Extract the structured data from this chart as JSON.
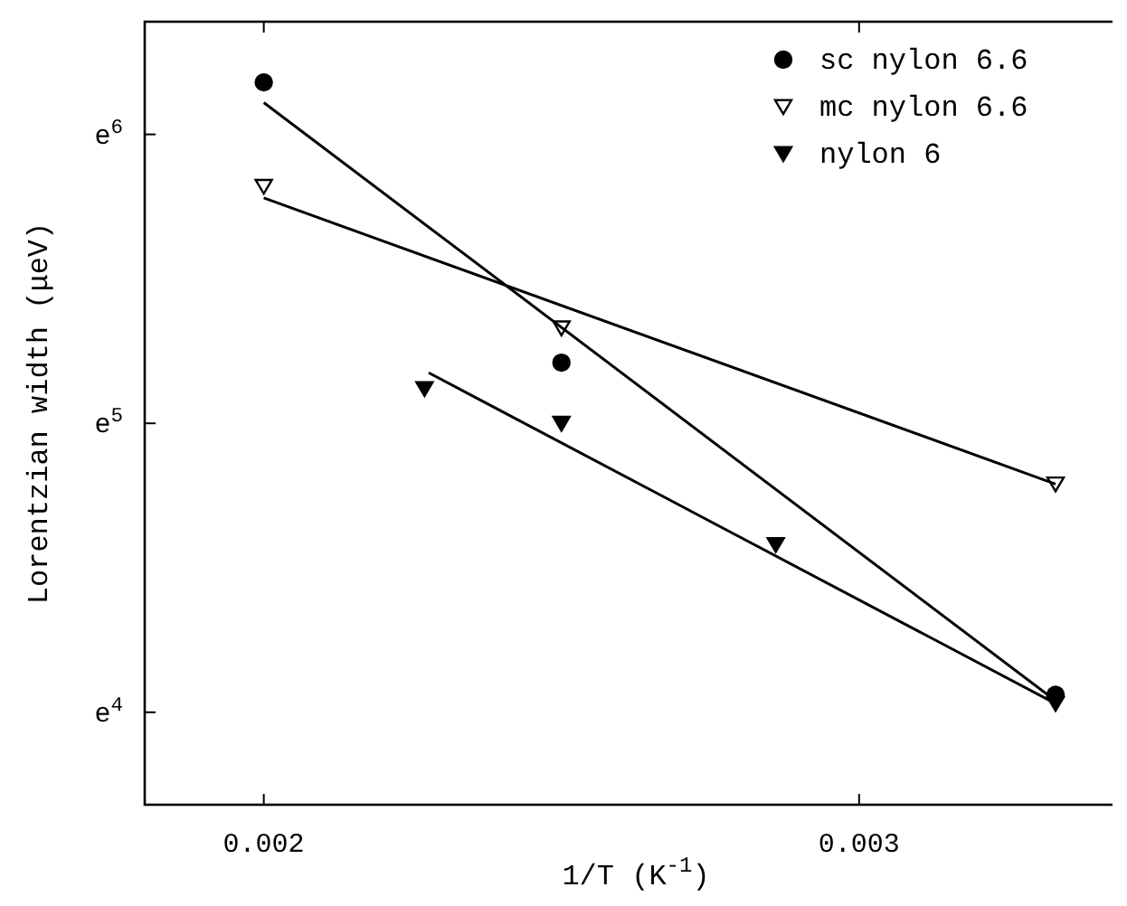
{
  "chart_data": {
    "type": "scatter",
    "xlabel": "1/T (K$^{-1}$)",
    "ylabel": "Lorentzian width (μeV)",
    "xlim": [
      0.0018,
      0.00345
    ],
    "xticks": [
      0.002,
      0.003
    ],
    "ylim": [
      3.68,
      6.39
    ],
    "yticks": [
      {
        "value": 4,
        "label": "e$^{4}$"
      },
      {
        "value": 5,
        "label": "e$^{5}$"
      },
      {
        "value": 6,
        "label": "e$^{6}$"
      }
    ],
    "grid": false,
    "legend": "top right",
    "series": [
      {
        "name": "sc nylon 6.6",
        "color": "#000000",
        "marker": "circle",
        "x": [
          0.002,
          0.0025,
          0.00333
        ],
        "values": [
          6.18,
          5.21,
          4.06
        ]
      },
      {
        "name": "mc nylon 6.6",
        "color": "#ffffff",
        "marker": "triangle",
        "x": [
          0.002,
          0.0025,
          0.00333
        ],
        "values": [
          5.82,
          5.33,
          4.79
        ]
      },
      {
        "name": "nylon 6",
        "color": "#000000",
        "marker": "triangle",
        "x": [
          0.00227,
          0.0025,
          0.00286,
          0.00333
        ],
        "values": [
          5.12,
          5.0,
          4.58,
          4.03
        ]
      },
      {
        "type": "line",
        "color": "#000000",
        "marker": "none",
        "line_style": "solid",
        "x": [
          0.002,
          0.00333
        ],
        "values": [
          6.11,
          4.04
        ]
      },
      {
        "type": "line",
        "color": "#000000",
        "marker": "none",
        "line_style": "solid",
        "x": [
          0.002,
          0.00333
        ],
        "values": [
          5.78,
          4.79
        ]
      },
      {
        "type": "line",
        "color": "#000000",
        "marker": "none",
        "line_style": "solid",
        "x": [
          0.002277,
          0.00333
        ],
        "values": [
          5.175,
          4.03
        ]
      }
    ]
  }
}
